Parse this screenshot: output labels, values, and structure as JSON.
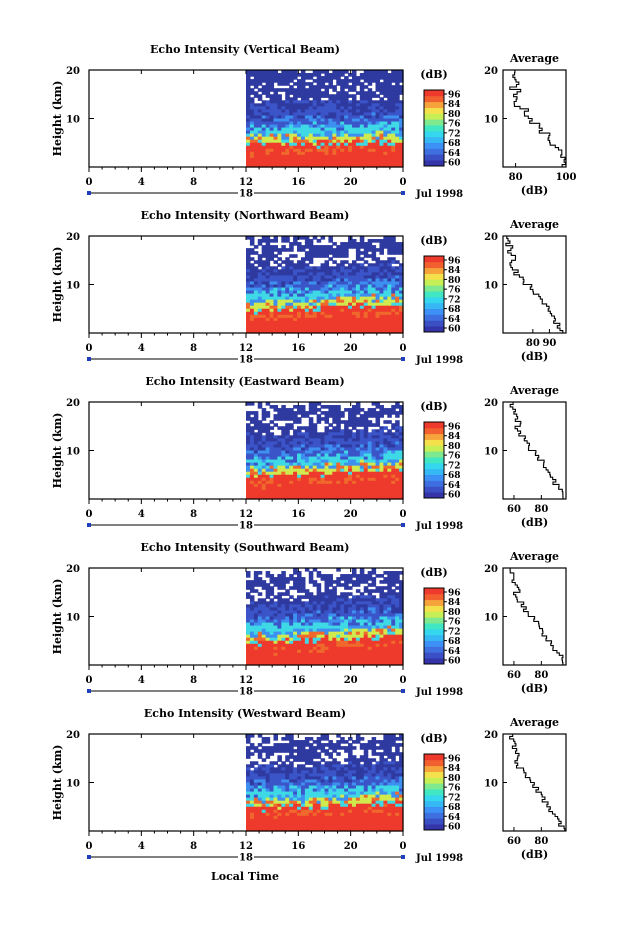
{
  "page": {
    "x_axis_title": "Local Time"
  },
  "colors": {
    "colorbar": [
      "#3434a8",
      "#3b4fc4",
      "#3e6fe0",
      "#3d90f5",
      "#36b8f5",
      "#34d7ee",
      "#41e6c2",
      "#7ee98e",
      "#c6ee55",
      "#f4e04a",
      "#f7a33c",
      "#f26030",
      "#ee3a2c"
    ],
    "echo_bands": [
      "#ee3a2c",
      "#f0692c",
      "#cfe94f",
      "#3fd9e6",
      "#3d8ff0",
      "#3b55c9",
      "#2f3aa0"
    ]
  },
  "chart_data": [
    {
      "type": "heatmap",
      "title": "Echo Intensity (Vertical Beam)",
      "ylabel": "Height (km)",
      "ylim": [
        0,
        20
      ],
      "y_ticks": [
        "10",
        "20"
      ],
      "xlim": [
        0,
        24
      ],
      "x_ticks": [
        "0",
        "4",
        "8",
        "12",
        "16",
        "20",
        "0"
      ],
      "date_label": "Jul 1998",
      "day_label": "18",
      "data_start_hour": 12,
      "colorbar": {
        "label": "(dB)",
        "ticks": [
          "96",
          "84",
          "80",
          "76",
          "72",
          "68",
          "64",
          "60"
        ]
      },
      "profile": {
        "title": "Average",
        "xlabel": "(dB)",
        "xlim": [
          75,
          100
        ],
        "x_ticks": [
          "80",
          "100"
        ],
        "y_ticks": [
          "10",
          "20"
        ],
        "height_km": [
          1,
          2,
          3,
          4,
          5,
          6,
          7,
          8,
          9,
          10,
          11,
          12,
          13,
          14,
          15,
          16,
          17,
          18,
          19,
          20
        ],
        "db": [
          99,
          100,
          98,
          97,
          95,
          94,
          93,
          90,
          89,
          87,
          85,
          84,
          81,
          80,
          80,
          81,
          79,
          80,
          80,
          79
        ]
      }
    },
    {
      "type": "heatmap",
      "title": "Echo Intensity (Northward Beam)",
      "ylabel": "Height (km)",
      "ylim": [
        0,
        20
      ],
      "y_ticks": [
        "10",
        "20"
      ],
      "xlim": [
        0,
        24
      ],
      "x_ticks": [
        "0",
        "4",
        "8",
        "12",
        "16",
        "20",
        "0"
      ],
      "date_label": "Jul 1998",
      "day_label": "18",
      "data_start_hour": 12,
      "colorbar": {
        "label": "(dB)",
        "ticks": [
          "96",
          "84",
          "80",
          "76",
          "72",
          "68",
          "64",
          "60"
        ]
      },
      "profile": {
        "title": "Average",
        "xlabel": "(dB)",
        "xlim": [
          62,
          100
        ],
        "x_ticks": [
          "80",
          "90"
        ],
        "y_ticks": [
          "10",
          "20"
        ],
        "height_km": [
          1,
          2,
          3,
          4,
          5,
          6,
          7,
          8,
          9,
          10,
          11,
          12,
          13,
          14,
          15,
          16,
          17,
          18,
          19,
          20
        ],
        "db": [
          97,
          96,
          94,
          92,
          90,
          89,
          86,
          84,
          81,
          78,
          75,
          73,
          70,
          68,
          67,
          69,
          66,
          67,
          65,
          64
        ]
      }
    },
    {
      "type": "heatmap",
      "title": "Echo Intensity (Eastward Beam)",
      "ylabel": "Height (km)",
      "ylim": [
        0,
        20
      ],
      "y_ticks": [
        "10",
        "20"
      ],
      "xlim": [
        0,
        24
      ],
      "x_ticks": [
        "0",
        "4",
        "8",
        "12",
        "16",
        "20",
        "0"
      ],
      "date_label": "Jul 1998",
      "day_label": "18",
      "data_start_hour": 12,
      "colorbar": {
        "label": "(dB)",
        "ticks": [
          "96",
          "84",
          "80",
          "76",
          "72",
          "68",
          "64",
          "60"
        ]
      },
      "profile": {
        "title": "Average",
        "xlabel": "(dB)",
        "xlim": [
          52,
          98
        ],
        "x_ticks": [
          "60",
          "80"
        ],
        "y_ticks": [
          "10",
          "20"
        ],
        "height_km": [
          1,
          2,
          3,
          4,
          5,
          6,
          7,
          8,
          9,
          10,
          11,
          12,
          13,
          14,
          15,
          16,
          17,
          18,
          19,
          20
        ],
        "db": [
          96,
          95,
          92,
          90,
          88,
          86,
          83,
          81,
          78,
          75,
          72,
          70,
          67,
          64,
          62,
          65,
          62,
          61,
          60,
          58
        ]
      }
    },
    {
      "type": "heatmap",
      "title": "Echo Intensity (Southward Beam)",
      "ylabel": "Height (km)",
      "ylim": [
        0,
        20
      ],
      "y_ticks": [
        "10",
        "20"
      ],
      "xlim": [
        0,
        24
      ],
      "x_ticks": [
        "0",
        "4",
        "8",
        "12",
        "16",
        "20",
        "0"
      ],
      "date_label": "Jul 1998",
      "day_label": "18",
      "data_start_hour": 12,
      "colorbar": {
        "label": "(dB)",
        "ticks": [
          "96",
          "84",
          "80",
          "76",
          "72",
          "68",
          "64",
          "60"
        ]
      },
      "profile": {
        "title": "Average",
        "xlabel": "(dB)",
        "xlim": [
          52,
          98
        ],
        "x_ticks": [
          "60",
          "80"
        ],
        "y_ticks": [
          "10",
          "20"
        ],
        "height_km": [
          1,
          2,
          3,
          4,
          5,
          6,
          7,
          8,
          9,
          10,
          11,
          12,
          13,
          14,
          15,
          16,
          17,
          18,
          19,
          20
        ],
        "db": [
          96,
          95,
          92,
          89,
          87,
          84,
          82,
          80,
          77,
          74,
          71,
          68,
          66,
          63,
          61,
          64,
          61,
          60,
          59,
          57
        ]
      }
    },
    {
      "type": "heatmap",
      "title": "Echo Intensity (Westward Beam)",
      "ylabel": "Height (km)",
      "ylim": [
        0,
        20
      ],
      "y_ticks": [
        "10",
        "20"
      ],
      "xlim": [
        0,
        24
      ],
      "x_ticks": [
        "0",
        "4",
        "8",
        "12",
        "16",
        "20",
        "0"
      ],
      "date_label": "Jul 1998",
      "day_label": "18",
      "data_start_hour": 12,
      "colorbar": {
        "label": "(dB)",
        "ticks": [
          "96",
          "84",
          "80",
          "76",
          "72",
          "68",
          "64",
          "60"
        ]
      },
      "profile": {
        "title": "Average",
        "xlabel": "(dB)",
        "xlim": [
          52,
          98
        ],
        "x_ticks": [
          "60",
          "80"
        ],
        "y_ticks": [
          "10",
          "20"
        ],
        "height_km": [
          1,
          2,
          3,
          4,
          5,
          6,
          7,
          8,
          9,
          10,
          11,
          12,
          13,
          14,
          15,
          16,
          17,
          18,
          19,
          20
        ],
        "db": [
          96,
          94,
          92,
          89,
          87,
          85,
          82,
          80,
          77,
          74,
          71,
          69,
          66,
          63,
          61,
          64,
          61,
          60,
          60,
          58
        ]
      }
    }
  ]
}
